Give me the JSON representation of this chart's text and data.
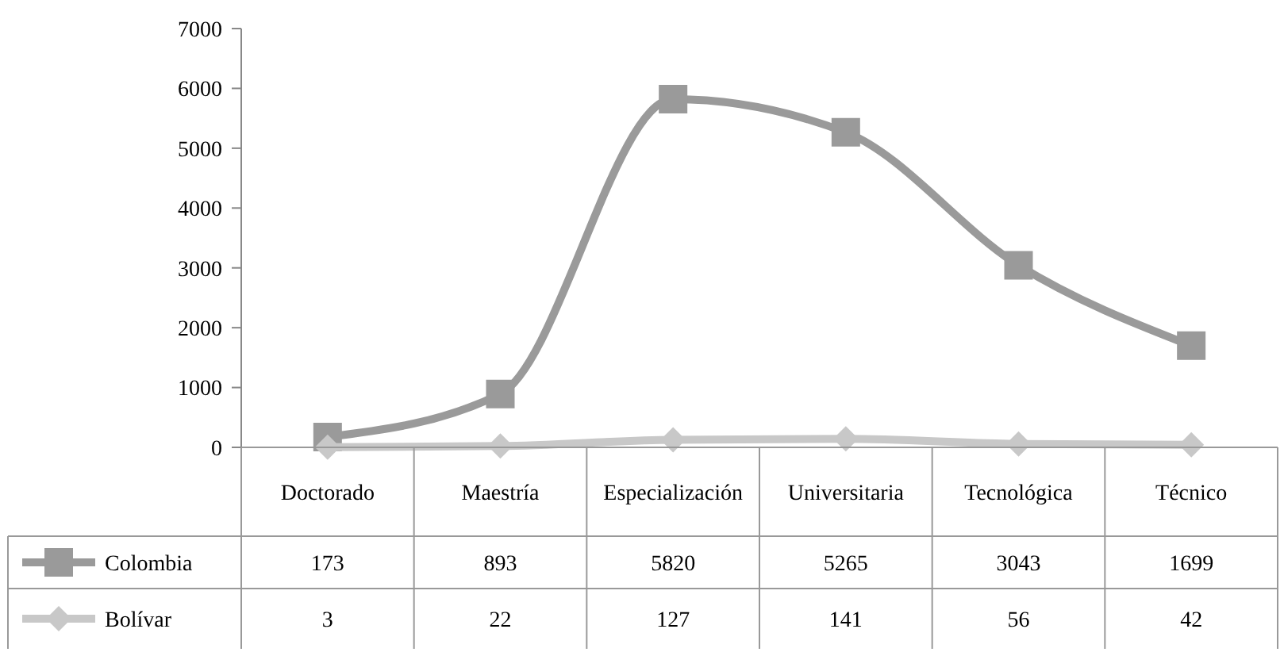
{
  "chart_data": {
    "type": "line",
    "categories": [
      "Doctorado",
      "Maestría",
      "Especialización",
      "Universitaria",
      "Tecnológica",
      "Técnico"
    ],
    "series": [
      {
        "name": "Colombia",
        "color": "#9a9a9a",
        "marker": "square",
        "values": [
          173,
          893,
          5820,
          5265,
          3043,
          1699
        ]
      },
      {
        "name": "Bolívar",
        "color": "#c8c8c8",
        "marker": "diamond",
        "values": [
          3,
          22,
          127,
          141,
          56,
          42
        ]
      }
    ],
    "ylim": [
      0,
      7000
    ],
    "yticks": [
      0,
      1000,
      2000,
      3000,
      4000,
      5000,
      6000,
      7000
    ],
    "grid": false,
    "legend": "bottom",
    "data_labels": true
  }
}
